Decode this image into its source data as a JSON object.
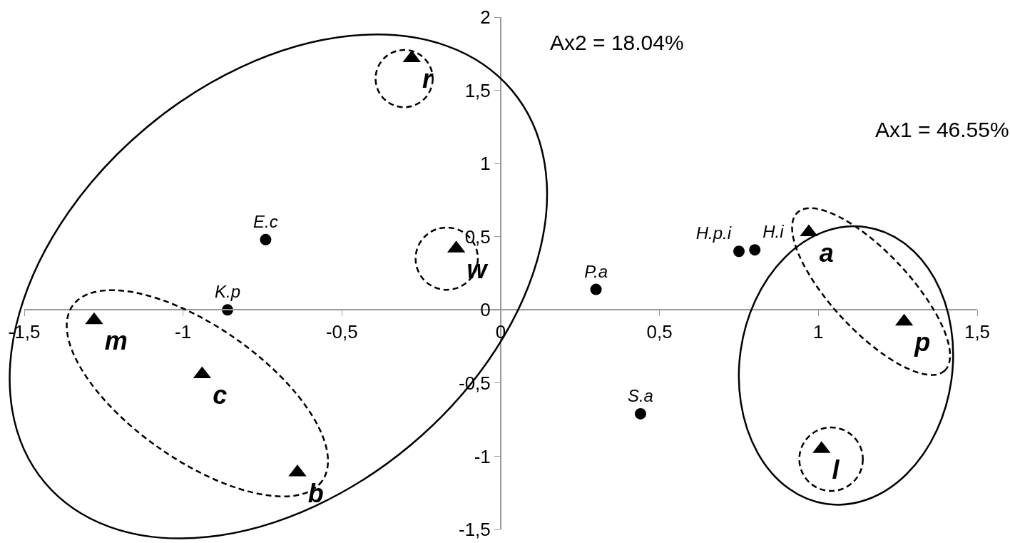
{
  "chart_data": {
    "type": "scatter",
    "xlabel": "Ax1 = 46.55%",
    "ylabel": "Ax2 = 18.04%",
    "xlim": [
      -1.5,
      1.5
    ],
    "ylim": [
      -1.5,
      2
    ],
    "xticks": [
      {
        "value": -1.5,
        "label": "-1,5"
      },
      {
        "value": -1,
        "label": "-1"
      },
      {
        "value": -0.5,
        "label": "-0,5"
      },
      {
        "value": 0,
        "label": "0"
      },
      {
        "value": 0.5,
        "label": "0,5"
      },
      {
        "value": 1,
        "label": "1"
      },
      {
        "value": 1.5,
        "label": "1,5"
      }
    ],
    "yticks": [
      {
        "value": -1.5,
        "label": "-1,5"
      },
      {
        "value": -1,
        "label": "-1"
      },
      {
        "value": -0.5,
        "label": "-0,5"
      },
      {
        "value": 0,
        "label": "0"
      },
      {
        "value": 0.5,
        "label": "0,5"
      },
      {
        "value": 1,
        "label": "1"
      },
      {
        "value": 1.5,
        "label": "1,5"
      },
      {
        "value": 2,
        "label": "2"
      }
    ],
    "grid": false,
    "legend": false,
    "series": [
      {
        "name": "E.c",
        "color": "#000000",
        "marker": "circle",
        "x": [
          -0.74
        ],
        "values": [
          0.48
        ]
      },
      {
        "name": "K.p",
        "color": "#000000",
        "marker": "circle",
        "x": [
          -0.86
        ],
        "values": [
          0
        ]
      },
      {
        "name": "P.a",
        "color": "#000000",
        "marker": "circle",
        "x": [
          0.3
        ],
        "values": [
          0.14
        ]
      },
      {
        "name": "S.a",
        "color": "#000000",
        "marker": "circle",
        "x": [
          0.44
        ],
        "values": [
          -0.71
        ]
      },
      {
        "name": "H.p.i",
        "color": "#000000",
        "marker": "circle",
        "x": [
          0.75
        ],
        "values": [
          0.4
        ]
      },
      {
        "name": "H.i",
        "color": "#000000",
        "marker": "circle",
        "x": [
          0.8
        ],
        "values": [
          0.41
        ]
      },
      {
        "name": "r",
        "color": "#000000",
        "marker": "triangle",
        "x": [
          -0.28
        ],
        "values": [
          1.72
        ]
      },
      {
        "name": "w",
        "color": "#000000",
        "marker": "triangle",
        "x": [
          -0.14
        ],
        "values": [
          0.42
        ]
      },
      {
        "name": "m",
        "color": "#000000",
        "marker": "triangle",
        "x": [
          -1.28
        ],
        "values": [
          -0.07
        ]
      },
      {
        "name": "c",
        "color": "#000000",
        "marker": "triangle",
        "x": [
          -0.94
        ],
        "values": [
          -0.44
        ]
      },
      {
        "name": "b",
        "color": "#000000",
        "marker": "triangle",
        "x": [
          -0.64
        ],
        "values": [
          -1.11
        ]
      },
      {
        "name": "a",
        "color": "#000000",
        "marker": "triangle",
        "x": [
          0.97
        ],
        "values": [
          0.53
        ]
      },
      {
        "name": "p",
        "color": "#000000",
        "marker": "triangle",
        "x": [
          1.27
        ],
        "values": [
          -0.08
        ]
      },
      {
        "name": "l",
        "color": "#000000",
        "marker": "triangle",
        "x": [
          1.01
        ],
        "values": [
          -0.95
        ]
      }
    ]
  }
}
